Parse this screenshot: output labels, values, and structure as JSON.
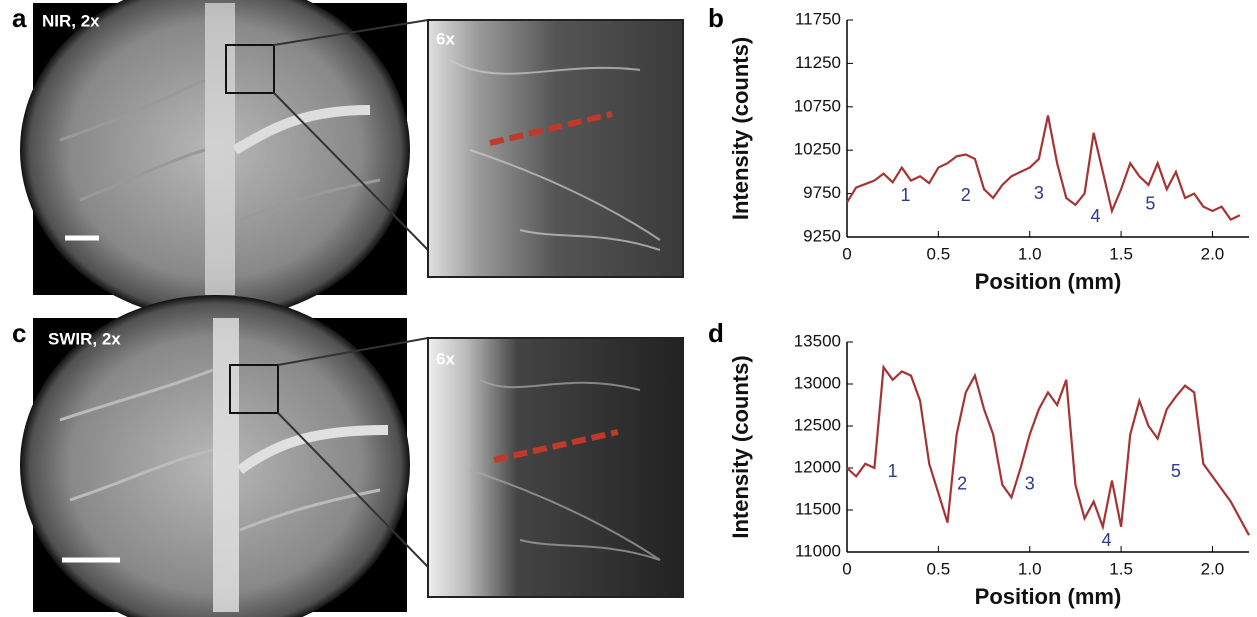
{
  "panel_labels": [
    "a",
    "b",
    "c",
    "d"
  ],
  "images": [
    {
      "label": "NIR, 2x",
      "inset_label": "6x"
    },
    {
      "label": "SWIR, 2x",
      "inset_label": "6x"
    }
  ],
  "chart_data": [
    {
      "type": "line",
      "xlabel": "Position  (mm)",
      "ylabel": "Intensity (counts)",
      "xlim": [
        0,
        2.2
      ],
      "ylim": [
        9250,
        11750
      ],
      "xticks": [
        0,
        0.5,
        {
          "value": 1,
          "label": "1.0"
        },
        1.5,
        {
          "value": 2,
          "label": "2.0"
        }
      ],
      "yticks": [
        9250,
        9750,
        10250,
        10750,
        11250,
        11750
      ],
      "x": [
        0,
        0.05,
        0.1,
        0.15,
        0.2,
        0.25,
        0.3,
        0.35,
        0.4,
        0.45,
        0.5,
        0.55,
        0.6,
        0.65,
        0.7,
        0.75,
        0.8,
        0.85,
        0.9,
        0.95,
        1.0,
        1.05,
        1.1,
        1.15,
        1.2,
        1.25,
        1.3,
        1.35,
        1.4,
        1.45,
        1.5,
        1.55,
        1.6,
        1.65,
        1.7,
        1.75,
        1.8,
        1.85,
        1.9,
        1.95,
        2.0,
        2.05,
        2.1,
        2.15
      ],
      "series": [
        {
          "color": "#a53434",
          "values": [
            9650,
            9820,
            9860,
            9900,
            9980,
            9880,
            10050,
            9900,
            9950,
            9870,
            10050,
            10100,
            10180,
            10200,
            10150,
            9800,
            9700,
            9850,
            9950,
            10000,
            10050,
            10150,
            10650,
            10100,
            9700,
            9620,
            9750,
            10450,
            10000,
            9550,
            9800,
            10100,
            9950,
            9850,
            10100,
            9800,
            10000,
            9700,
            9750,
            9600,
            9550,
            9600,
            9450,
            9500
          ]
        }
      ],
      "annotations": [
        {
          "text": "1",
          "x": 0.32,
          "y": 9720
        },
        {
          "text": "2",
          "x": 0.65,
          "y": 9720
        },
        {
          "text": "3",
          "x": 1.05,
          "y": 9740
        },
        {
          "text": "4",
          "x": 1.36,
          "y": 9480
        },
        {
          "text": "5",
          "x": 1.66,
          "y": 9620
        }
      ],
      "annotation_color": "#2b3a8c"
    },
    {
      "type": "line",
      "xlabel": "Position (mm)",
      "ylabel": "Intensity (counts)",
      "xlim": [
        0,
        2.2
      ],
      "ylim": [
        11000,
        13500
      ],
      "xticks": [
        0,
        0.5,
        {
          "value": 1,
          "label": "1.0"
        },
        1.5,
        {
          "value": 2,
          "label": "2.0"
        }
      ],
      "yticks": [
        11000,
        11500,
        12000,
        12500,
        13000,
        13500
      ],
      "x": [
        0,
        0.05,
        0.1,
        0.15,
        0.2,
        0.25,
        0.3,
        0.35,
        0.4,
        0.45,
        0.5,
        0.55,
        0.6,
        0.65,
        0.7,
        0.75,
        0.8,
        0.85,
        0.9,
        0.95,
        1.0,
        1.05,
        1.1,
        1.15,
        1.2,
        1.25,
        1.3,
        1.35,
        1.4,
        1.45,
        1.5,
        1.55,
        1.6,
        1.65,
        1.7,
        1.75,
        1.8,
        1.85,
        1.9,
        1.95,
        2.0,
        2.05,
        2.1,
        2.15,
        2.2
      ],
      "series": [
        {
          "color": "#a53434",
          "values": [
            12000,
            11900,
            12050,
            12000,
            13200,
            13050,
            13150,
            13100,
            12800,
            12050,
            11700,
            11350,
            12400,
            12900,
            13100,
            12700,
            12400,
            11800,
            11650,
            12000,
            12400,
            12700,
            12900,
            12750,
            13050,
            11800,
            11400,
            11600,
            11300,
            11850,
            11300,
            12400,
            12800,
            12500,
            12350,
            12700,
            12850,
            12980,
            12900,
            12050,
            11900,
            11750,
            11600,
            11400,
            11200
          ]
        }
      ],
      "annotations": [
        {
          "text": "1",
          "x": 0.25,
          "y": 11950
        },
        {
          "text": "2",
          "x": 0.63,
          "y": 11800
        },
        {
          "text": "3",
          "x": 1.0,
          "y": 11800
        },
        {
          "text": "4",
          "x": 1.42,
          "y": 11130
        },
        {
          "text": "5",
          "x": 1.8,
          "y": 11950
        }
      ],
      "annotation_color": "#2b3a8c"
    }
  ]
}
